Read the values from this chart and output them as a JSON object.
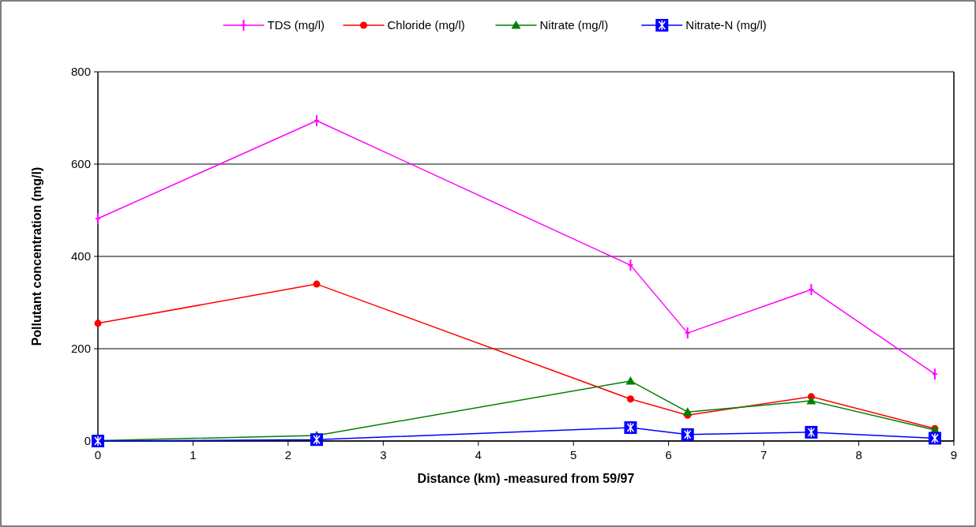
{
  "chart_data": {
    "type": "line",
    "xlabel": "Distance (km) -measured from 59/97",
    "ylabel": "Pollutant concentration (mg/l)",
    "xlim": [
      0,
      9
    ],
    "xticks": [
      0,
      1,
      2,
      3,
      4,
      5,
      6,
      7,
      8,
      9
    ],
    "ylim": [
      0,
      800
    ],
    "yticks": [
      0,
      200,
      400,
      600,
      800
    ],
    "grid": "y",
    "legend": "top",
    "series": [
      {
        "name": "TDS (mg/l)",
        "color": "#ff00ff",
        "marker": "cross",
        "x": [
          0,
          2.3,
          5.6,
          6.2,
          7.5,
          8.8
        ],
        "values": [
          482,
          694,
          381,
          234,
          328,
          145
        ]
      },
      {
        "name": "Chloride (mg/l)",
        "color": "#ff0000",
        "marker": "circle",
        "x": [
          0,
          2.3,
          5.6,
          6.2,
          7.5,
          8.8
        ],
        "values": [
          255,
          340,
          91,
          56,
          96,
          27
        ]
      },
      {
        "name": "Nitrate (mg/l)",
        "color": "#008000",
        "marker": "triangle",
        "x": [
          0,
          2.3,
          5.6,
          6.2,
          7.5,
          8.8
        ],
        "values": [
          1,
          12,
          130,
          63,
          87,
          24
        ]
      },
      {
        "name": "Nitrate-N (mg/l)",
        "color": "#0000ff",
        "marker": "square",
        "x": [
          0,
          2.3,
          5.6,
          6.2,
          7.5,
          8.8
        ],
        "values": [
          0,
          3,
          29,
          14,
          19,
          6
        ]
      }
    ]
  }
}
